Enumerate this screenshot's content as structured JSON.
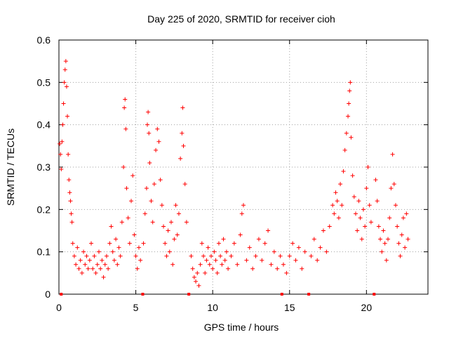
{
  "chart_data": {
    "type": "scatter",
    "title": "Day 225 of 2020, SRMTID for receiver cioh",
    "xlabel": "GPS time / hours",
    "ylabel": "SRMTID / TECUs",
    "xlim": [
      0,
      24
    ],
    "ylim": [
      0,
      0.6
    ],
    "xticks": [
      0,
      5,
      10,
      15,
      20
    ],
    "xtick_labels": [
      "0",
      "5",
      "10",
      "15",
      "20"
    ],
    "yticks": [
      0,
      0.1,
      0.2,
      0.3,
      0.4,
      0.5,
      0.6
    ],
    "ytick_labels": [
      "0",
      "0.1",
      "0.2",
      "0.3",
      "0.4",
      "0.5",
      "0.6"
    ],
    "grid": true,
    "marker": "+",
    "color": "#ff0000",
    "gap_markers_x": [
      0.15,
      5.45,
      8.45,
      14.5,
      16.25,
      20.5
    ],
    "series": [
      {
        "name": "SRMTID",
        "points": [
          [
            0.05,
            0.355
          ],
          [
            0.1,
            0.33
          ],
          [
            0.15,
            0.295
          ],
          [
            0.2,
            0.36
          ],
          [
            0.25,
            0.4
          ],
          [
            0.3,
            0.45
          ],
          [
            0.35,
            0.5
          ],
          [
            0.4,
            0.53
          ],
          [
            0.45,
            0.55
          ],
          [
            0.5,
            0.49
          ],
          [
            0.55,
            0.42
          ],
          [
            0.6,
            0.33
          ],
          [
            0.65,
            0.27
          ],
          [
            0.7,
            0.24
          ],
          [
            0.75,
            0.22
          ],
          [
            0.8,
            0.19
          ],
          [
            0.85,
            0.17
          ],
          [
            0.9,
            0.12
          ],
          [
            1.0,
            0.09
          ],
          [
            1.1,
            0.07
          ],
          [
            1.2,
            0.11
          ],
          [
            1.3,
            0.06
          ],
          [
            1.4,
            0.08
          ],
          [
            1.5,
            0.05
          ],
          [
            1.6,
            0.1
          ],
          [
            1.7,
            0.07
          ],
          [
            1.8,
            0.09
          ],
          [
            1.9,
            0.06
          ],
          [
            2.0,
            0.08
          ],
          [
            2.1,
            0.12
          ],
          [
            2.2,
            0.06
          ],
          [
            2.3,
            0.09
          ],
          [
            2.4,
            0.05
          ],
          [
            2.5,
            0.07
          ],
          [
            2.6,
            0.1
          ],
          [
            2.7,
            0.06
          ],
          [
            2.8,
            0.08
          ],
          [
            2.9,
            0.04
          ],
          [
            3.0,
            0.07
          ],
          [
            3.1,
            0.09
          ],
          [
            3.2,
            0.06
          ],
          [
            3.3,
            0.12
          ],
          [
            3.4,
            0.16
          ],
          [
            3.5,
            0.1
          ],
          [
            3.6,
            0.08
          ],
          [
            3.7,
            0.13
          ],
          [
            3.8,
            0.07
          ],
          [
            3.9,
            0.11
          ],
          [
            4.0,
            0.09
          ],
          [
            4.1,
            0.17
          ],
          [
            4.2,
            0.3
          ],
          [
            4.25,
            0.44
          ],
          [
            4.3,
            0.46
          ],
          [
            4.35,
            0.39
          ],
          [
            4.4,
            0.25
          ],
          [
            4.5,
            0.18
          ],
          [
            4.6,
            0.12
          ],
          [
            4.7,
            0.22
          ],
          [
            4.8,
            0.28
          ],
          [
            4.9,
            0.14
          ],
          [
            5.0,
            0.09
          ],
          [
            5.1,
            0.06
          ],
          [
            5.2,
            0.11
          ],
          [
            5.3,
            0.08
          ],
          [
            5.5,
            0.12
          ],
          [
            5.6,
            0.19
          ],
          [
            5.7,
            0.25
          ],
          [
            5.75,
            0.4
          ],
          [
            5.8,
            0.43
          ],
          [
            5.85,
            0.38
          ],
          [
            5.9,
            0.31
          ],
          [
            6.0,
            0.22
          ],
          [
            6.1,
            0.17
          ],
          [
            6.2,
            0.26
          ],
          [
            6.3,
            0.34
          ],
          [
            6.4,
            0.39
          ],
          [
            6.5,
            0.36
          ],
          [
            6.6,
            0.27
          ],
          [
            6.7,
            0.21
          ],
          [
            6.8,
            0.16
          ],
          [
            6.9,
            0.12
          ],
          [
            7.0,
            0.09
          ],
          [
            7.1,
            0.15
          ],
          [
            7.2,
            0.1
          ],
          [
            7.3,
            0.17
          ],
          [
            7.4,
            0.07
          ],
          [
            7.5,
            0.13
          ],
          [
            7.6,
            0.21
          ],
          [
            7.7,
            0.14
          ],
          [
            7.8,
            0.19
          ],
          [
            7.9,
            0.32
          ],
          [
            8.0,
            0.38
          ],
          [
            8.05,
            0.44
          ],
          [
            8.1,
            0.35
          ],
          [
            8.2,
            0.26
          ],
          [
            8.3,
            0.17
          ],
          [
            8.6,
            0.09
          ],
          [
            8.7,
            0.06
          ],
          [
            8.8,
            0.04
          ],
          [
            8.9,
            0.03
          ],
          [
            9.0,
            0.05
          ],
          [
            9.1,
            0.02
          ],
          [
            9.2,
            0.07
          ],
          [
            9.3,
            0.12
          ],
          [
            9.4,
            0.09
          ],
          [
            9.5,
            0.05
          ],
          [
            9.6,
            0.08
          ],
          [
            9.7,
            0.11
          ],
          [
            9.8,
            0.07
          ],
          [
            9.9,
            0.09
          ],
          [
            10.0,
            0.06
          ],
          [
            10.1,
            0.1
          ],
          [
            10.2,
            0.08
          ],
          [
            10.3,
            0.05
          ],
          [
            10.4,
            0.12
          ],
          [
            10.5,
            0.09
          ],
          [
            10.6,
            0.07
          ],
          [
            10.7,
            0.13
          ],
          [
            10.8,
            0.08
          ],
          [
            10.9,
            0.1
          ],
          [
            11.0,
            0.06
          ],
          [
            11.2,
            0.09
          ],
          [
            11.4,
            0.12
          ],
          [
            11.6,
            0.07
          ],
          [
            11.8,
            0.14
          ],
          [
            11.9,
            0.19
          ],
          [
            12.0,
            0.21
          ],
          [
            12.2,
            0.08
          ],
          [
            12.4,
            0.11
          ],
          [
            12.6,
            0.06
          ],
          [
            12.8,
            0.09
          ],
          [
            13.0,
            0.13
          ],
          [
            13.2,
            0.08
          ],
          [
            13.4,
            0.12
          ],
          [
            13.6,
            0.15
          ],
          [
            13.8,
            0.07
          ],
          [
            14.0,
            0.1
          ],
          [
            14.2,
            0.06
          ],
          [
            14.4,
            0.09
          ],
          [
            14.6,
            0.07
          ],
          [
            14.8,
            0.05
          ],
          [
            15.0,
            0.09
          ],
          [
            15.2,
            0.12
          ],
          [
            15.4,
            0.08
          ],
          [
            15.6,
            0.11
          ],
          [
            15.8,
            0.06
          ],
          [
            16.0,
            0.1
          ],
          [
            16.4,
            0.09
          ],
          [
            16.6,
            0.13
          ],
          [
            16.8,
            0.08
          ],
          [
            17.0,
            0.11
          ],
          [
            17.2,
            0.15
          ],
          [
            17.4,
            0.1
          ],
          [
            17.6,
            0.16
          ],
          [
            17.8,
            0.21
          ],
          [
            17.9,
            0.19
          ],
          [
            18.0,
            0.24
          ],
          [
            18.1,
            0.22
          ],
          [
            18.2,
            0.18
          ],
          [
            18.3,
            0.26
          ],
          [
            18.4,
            0.21
          ],
          [
            18.5,
            0.29
          ],
          [
            18.6,
            0.34
          ],
          [
            18.7,
            0.38
          ],
          [
            18.8,
            0.42
          ],
          [
            18.85,
            0.45
          ],
          [
            18.9,
            0.48
          ],
          [
            18.95,
            0.5
          ],
          [
            19.0,
            0.37
          ],
          [
            19.1,
            0.28
          ],
          [
            19.2,
            0.23
          ],
          [
            19.3,
            0.19
          ],
          [
            19.4,
            0.15
          ],
          [
            19.5,
            0.22
          ],
          [
            19.6,
            0.18
          ],
          [
            19.7,
            0.13
          ],
          [
            19.8,
            0.2
          ],
          [
            19.9,
            0.16
          ],
          [
            20.0,
            0.25
          ],
          [
            20.1,
            0.3
          ],
          [
            20.2,
            0.21
          ],
          [
            20.3,
            0.17
          ],
          [
            20.6,
            0.27
          ],
          [
            20.7,
            0.22
          ],
          [
            20.8,
            0.16
          ],
          [
            20.9,
            0.13
          ],
          [
            21.0,
            0.1
          ],
          [
            21.1,
            0.15
          ],
          [
            21.2,
            0.12
          ],
          [
            21.3,
            0.08
          ],
          [
            21.4,
            0.13
          ],
          [
            21.5,
            0.18
          ],
          [
            21.6,
            0.25
          ],
          [
            21.7,
            0.33
          ],
          [
            21.8,
            0.26
          ],
          [
            21.9,
            0.21
          ],
          [
            22.0,
            0.16
          ],
          [
            22.1,
            0.12
          ],
          [
            22.2,
            0.09
          ],
          [
            22.3,
            0.14
          ],
          [
            22.4,
            0.18
          ],
          [
            22.5,
            0.11
          ],
          [
            22.6,
            0.19
          ],
          [
            22.7,
            0.13
          ]
        ]
      }
    ]
  }
}
